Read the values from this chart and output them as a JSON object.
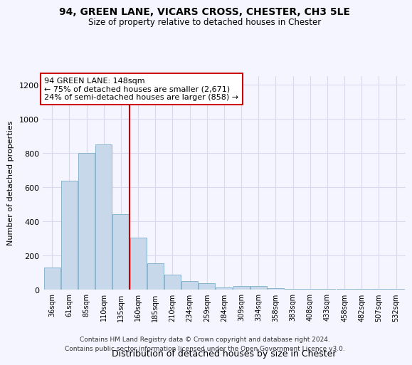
{
  "title1": "94, GREEN LANE, VICARS CROSS, CHESTER, CH3 5LE",
  "title2": "Size of property relative to detached houses in Chester",
  "xlabel": "Distribution of detached houses by size in Chester",
  "ylabel": "Number of detached properties",
  "categories": [
    "36sqm",
    "61sqm",
    "85sqm",
    "110sqm",
    "135sqm",
    "160sqm",
    "185sqm",
    "210sqm",
    "234sqm",
    "259sqm",
    "284sqm",
    "309sqm",
    "334sqm",
    "358sqm",
    "383sqm",
    "408sqm",
    "433sqm",
    "458sqm",
    "482sqm",
    "507sqm",
    "532sqm"
  ],
  "values": [
    130,
    635,
    800,
    850,
    440,
    305,
    155,
    85,
    50,
    35,
    12,
    20,
    20,
    8,
    3,
    3,
    3,
    3,
    3,
    3,
    3
  ],
  "bar_color": "#c8d8eb",
  "bar_edgecolor": "#8ab4ce",
  "vline_color": "#cc0000",
  "annotation_text": "94 GREEN LANE: 148sqm\n← 75% of detached houses are smaller (2,671)\n24% of semi-detached houses are larger (858) →",
  "annotation_box_color": "#ffffff",
  "annotation_box_edgecolor": "#cc0000",
  "ylim": [
    0,
    1250
  ],
  "yticks": [
    0,
    200,
    400,
    600,
    800,
    1000,
    1200
  ],
  "footer": "Contains HM Land Registry data © Crown copyright and database right 2024.\nContains public sector information licensed under the Open Government Licence v3.0.",
  "background_color": "#f5f5ff",
  "grid_color": "#d8d8ee"
}
